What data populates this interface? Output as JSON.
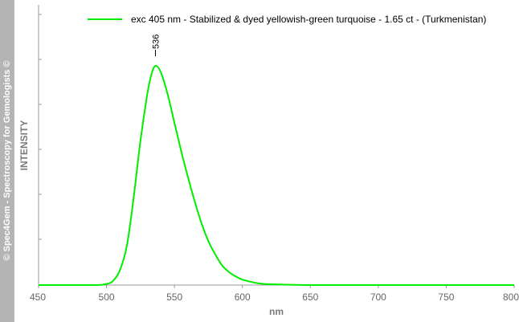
{
  "watermark": "© Spec4Gem - Spectroscopy for Gemologists ©",
  "chart_data": {
    "type": "line",
    "title": "",
    "xlabel": "nm",
    "ylabel": "INTENSITY",
    "xlim": [
      450,
      800
    ],
    "ylim": [
      0,
      1
    ],
    "x_ticks": [
      450,
      500,
      550,
      600,
      650,
      700,
      750,
      800
    ],
    "y_ticks_shown_labels": false,
    "grid": false,
    "legend_position": "top-right",
    "series": [
      {
        "name": "exc 405 nm - Stabilized & dyed yellowish-green turquoise - 1.65 ct - (Turkmenistan)",
        "color": "#00ee00",
        "x": [
          450,
          490,
          500,
          505,
          510,
          515,
          520,
          525,
          530,
          533,
          536,
          540,
          545,
          550,
          555,
          560,
          565,
          570,
          575,
          580,
          585,
          590,
          595,
          600,
          610,
          620,
          650,
          700,
          750,
          800
        ],
        "y": [
          0.0,
          0.0,
          0.005,
          0.02,
          0.07,
          0.18,
          0.4,
          0.66,
          0.87,
          0.96,
          1.0,
          0.97,
          0.87,
          0.74,
          0.61,
          0.49,
          0.38,
          0.28,
          0.2,
          0.14,
          0.09,
          0.06,
          0.04,
          0.025,
          0.01,
          0.004,
          0.0,
          0.0,
          0.0,
          0.0
        ]
      }
    ],
    "annotations": [
      {
        "label": "536",
        "x": 536
      }
    ]
  }
}
